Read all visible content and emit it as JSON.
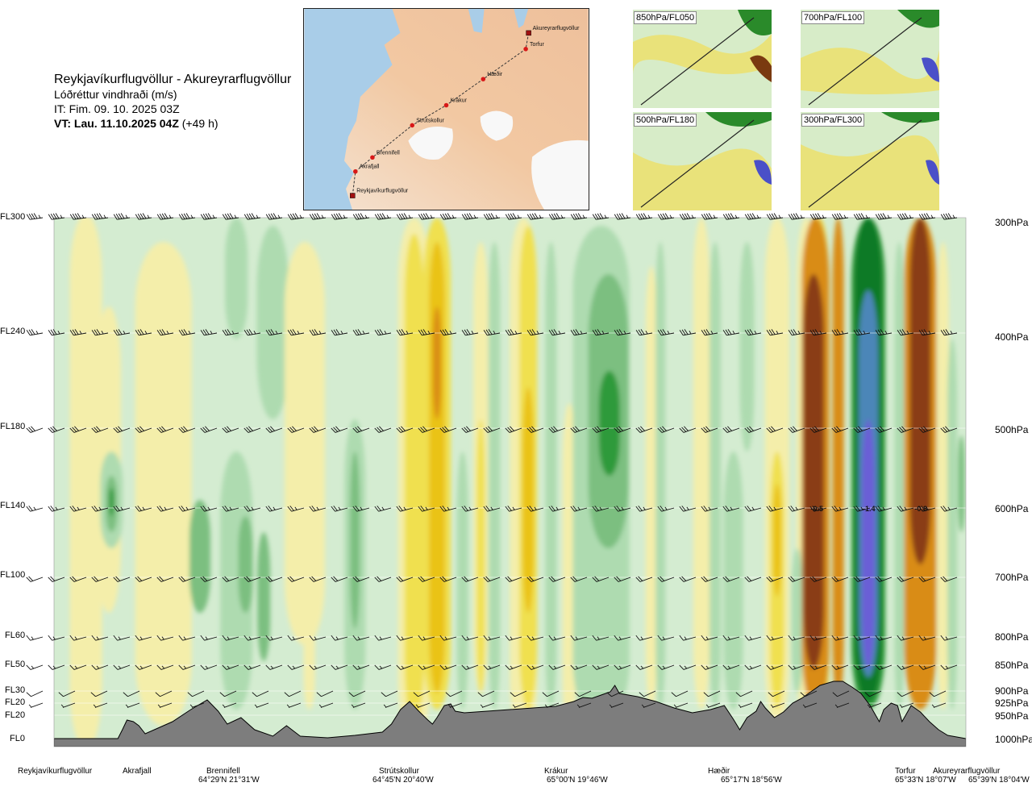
{
  "title": {
    "route": "Reykjavíkurflugvöllur - Akureyrarflugvöllur",
    "quantity": "Lóðréttur vindhraði (m/s)",
    "issue_time": "IT: Fim. 09. 10. 2025 03Z",
    "valid_label": "VT: Lau. 11.10.2025 04Z",
    "valid_offset": "(+49 h)"
  },
  "map": {
    "points": [
      {
        "name": "Akureyrarflugvöllur",
        "u": 0.79,
        "v": 0.12
      },
      {
        "name": "Torfur",
        "u": 0.78,
        "v": 0.2
      },
      {
        "name": "Hæðir",
        "u": 0.63,
        "v": 0.35
      },
      {
        "name": "Krákur",
        "u": 0.5,
        "v": 0.48
      },
      {
        "name": "Strútskollur",
        "u": 0.38,
        "v": 0.58
      },
      {
        "name": "Brennifell",
        "u": 0.24,
        "v": 0.74
      },
      {
        "name": "Akrafjall",
        "u": 0.18,
        "v": 0.81
      },
      {
        "name": "Reykjavíkurflugvöllur",
        "u": 0.17,
        "v": 0.93
      }
    ]
  },
  "panels": [
    {
      "label": "850hPa/FL050"
    },
    {
      "label": "700hPa/FL100"
    },
    {
      "label": "500hPa/FL180"
    },
    {
      "label": "300hPa/FL300"
    }
  ],
  "chart_data": {
    "type": "heatmap",
    "title": "Lóðréttur vindhraði (m/s)",
    "x_waypoints": [
      {
        "name": "Reykjavíkurflugvöllur",
        "coord": ""
      },
      {
        "name": "Akrafjall",
        "coord": ""
      },
      {
        "name": "Brennifell",
        "coord": "64°29'N 21°31'W"
      },
      {
        "name": "Strútskollur",
        "coord": "64°45'N 20°40'W"
      },
      {
        "name": "Krákur",
        "coord": "65°00'N 19°46'W"
      },
      {
        "name": "Hæðir",
        "coord": "65°17'N 18°56'W"
      },
      {
        "name": "Torfur",
        "coord": "65°33'N 18°07'W"
      },
      {
        "name": "Akureyrarflugvöllur",
        "coord": "65°39'N 18°04'W"
      }
    ],
    "left_axis": [
      "FL300",
      "FL240",
      "FL180",
      "FL140",
      "FL100",
      "FL60",
      "FL50",
      "FL30",
      "FL20",
      "FL20",
      "FL0"
    ],
    "right_axis": [
      "300hPa",
      "400hPa",
      "500hPa",
      "600hPa",
      "700hPa",
      "800hPa",
      "850hPa",
      "900hPa",
      "925hPa",
      "950hPa",
      "1000hPa"
    ],
    "barb_levels": [
      "FL300",
      "FL240",
      "FL180",
      "FL140",
      "FL100",
      "FL60",
      "FL50",
      "FL30",
      "FL20"
    ],
    "value_labels": [
      {
        "text": "-0.5",
        "level": "FL140",
        "xfrac": 0.836
      },
      {
        "text": "-1.4",
        "level": "FL140",
        "xfrac": 0.893
      },
      {
        "text": "-0.8",
        "level": "FL140",
        "xfrac": 0.95
      }
    ],
    "color_scale": {
      "strong_up": "#6b5fd6",
      "up_blue": "#4b86b8",
      "up_green_dark": "#0a7a28",
      "up_green": "#2f9a3a",
      "up_green_mid": "#7cbf80",
      "up_green_light": "#aedbb0",
      "weak_up": "#cfeacf",
      "weak_down": "#f4eeaa",
      "down_yellow": "#f0e050",
      "down_orange": "#eac313",
      "down_dark_orange": "#d98c18",
      "down_brown": "#8a3e12",
      "terrain": "#7d7d7d"
    }
  }
}
